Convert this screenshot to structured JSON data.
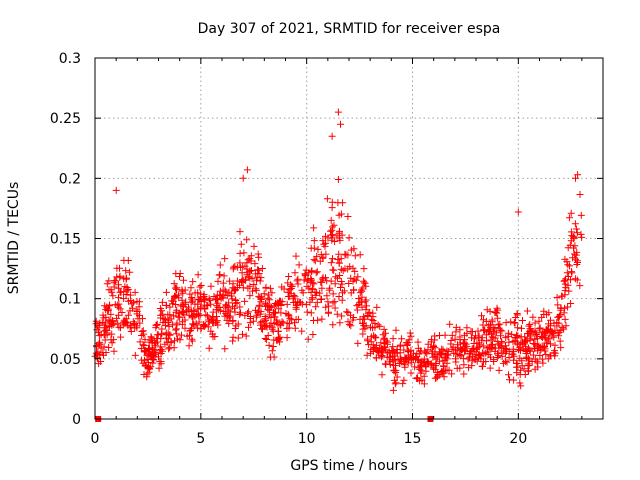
{
  "chart_data": {
    "type": "scatter",
    "title": "Day 307 of 2021, SRMTID for receiver espa",
    "xlabel": "GPS time / hours",
    "ylabel": "SRMTID / TECUs",
    "xlim": [
      0,
      24
    ],
    "ylim": [
      0,
      0.3
    ],
    "grid": true,
    "marker": "+",
    "series_color": "#ff0000",
    "x_ticks": [
      {
        "value": 0,
        "label": "0"
      },
      {
        "value": 5,
        "label": "5"
      },
      {
        "value": 10,
        "label": "10"
      },
      {
        "value": 15,
        "label": "15"
      },
      {
        "value": 20,
        "label": "20"
      }
    ],
    "y_ticks": [
      {
        "value": 0,
        "label": "0"
      },
      {
        "value": 0.05,
        "label": "0.05"
      },
      {
        "value": 0.1,
        "label": "0.1"
      },
      {
        "value": 0.15,
        "label": "0.15"
      },
      {
        "value": 0.2,
        "label": "0.2"
      },
      {
        "value": 0.25,
        "label": "0.25"
      },
      {
        "value": 0.3,
        "label": "0.3"
      }
    ],
    "envelope": {
      "x": [
        0,
        0.5,
        1.0,
        1.5,
        2.0,
        2.5,
        3.0,
        3.5,
        4.0,
        4.5,
        5.0,
        5.5,
        6.0,
        6.5,
        7.0,
        7.5,
        8.0,
        8.5,
        9.0,
        9.5,
        10.0,
        10.5,
        11.0,
        11.5,
        12.0,
        12.5,
        13.0,
        13.5,
        14.0,
        14.5,
        15.0,
        15.5,
        16.0,
        16.5,
        17.0,
        17.5,
        18.0,
        18.5,
        19.0,
        19.5,
        20.0,
        20.5,
        21.0,
        21.5,
        22.0,
        22.5,
        23.0
      ],
      "median": [
        0.06,
        0.08,
        0.1,
        0.1,
        0.08,
        0.05,
        0.07,
        0.08,
        0.09,
        0.09,
        0.09,
        0.09,
        0.1,
        0.1,
        0.12,
        0.11,
        0.09,
        0.08,
        0.09,
        0.1,
        0.11,
        0.11,
        0.12,
        0.13,
        0.12,
        0.1,
        0.08,
        0.06,
        0.05,
        0.05,
        0.05,
        0.05,
        0.05,
        0.05,
        0.06,
        0.06,
        0.06,
        0.07,
        0.07,
        0.06,
        0.06,
        0.06,
        0.06,
        0.07,
        0.08,
        0.13,
        0.16
      ],
      "spread": [
        0.03,
        0.04,
        0.06,
        0.05,
        0.04,
        0.03,
        0.04,
        0.04,
        0.05,
        0.04,
        0.04,
        0.04,
        0.05,
        0.05,
        0.07,
        0.05,
        0.04,
        0.04,
        0.04,
        0.05,
        0.06,
        0.06,
        0.08,
        0.1,
        0.06,
        0.05,
        0.04,
        0.03,
        0.03,
        0.03,
        0.03,
        0.03,
        0.03,
        0.03,
        0.03,
        0.03,
        0.03,
        0.04,
        0.04,
        0.03,
        0.04,
        0.04,
        0.03,
        0.04,
        0.04,
        0.06,
        0.05
      ],
      "sample_count": 1600,
      "x_start": 0.0,
      "x_end": 23.0
    },
    "peaks": [
      {
        "x": 1.0,
        "y": 0.19
      },
      {
        "x": 7.0,
        "y": 0.2
      },
      {
        "x": 7.2,
        "y": 0.207
      },
      {
        "x": 11.2,
        "y": 0.235
      },
      {
        "x": 11.5,
        "y": 0.255
      },
      {
        "x": 11.6,
        "y": 0.245
      },
      {
        "x": 20.0,
        "y": 0.172
      },
      {
        "x": 22.7,
        "y": 0.2
      },
      {
        "x": 22.8,
        "y": 0.203
      }
    ],
    "baseline_markers": [
      {
        "x": 0.15,
        "y": 0
      },
      {
        "x": 15.85,
        "y": 0
      }
    ]
  }
}
